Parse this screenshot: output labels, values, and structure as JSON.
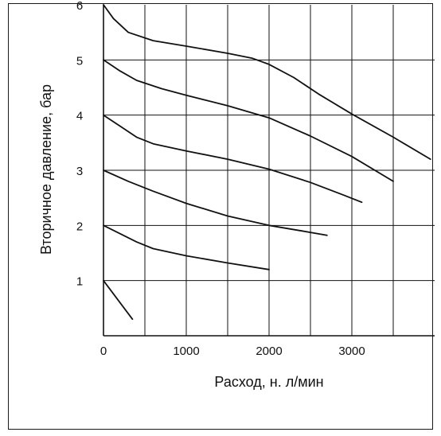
{
  "chart_data": {
    "type": "line",
    "title": "",
    "xlabel": "Расход, н. л/мин",
    "ylabel": "Вторичное давление, бар",
    "xlim": [
      0,
      4000
    ],
    "ylim": [
      0,
      6
    ],
    "x_ticks": [
      0,
      1000,
      2000,
      3000
    ],
    "x_tick_labels": [
      "0",
      "1000",
      "2000",
      "3000"
    ],
    "y_ticks": [
      1,
      2,
      3,
      4,
      5,
      6
    ],
    "y_tick_labels": [
      "1",
      "2",
      "3",
      "4",
      "5",
      "6"
    ],
    "grid": true,
    "grid_x_step": 500,
    "grid_y_step": 1,
    "line_color": "#111111",
    "series": [
      {
        "x": [
          0,
          120,
          300,
          600,
          1000,
          1500,
          1800,
          2000,
          2300,
          2600,
          3000,
          3500,
          3950
        ],
        "y": [
          6.0,
          5.75,
          5.5,
          5.35,
          5.25,
          5.12,
          5.03,
          4.92,
          4.68,
          4.38,
          4.02,
          3.6,
          3.2
        ]
      },
      {
        "x": [
          0,
          200,
          400,
          700,
          1000,
          1500,
          2000,
          2500,
          3000,
          3500
        ],
        "y": [
          5.0,
          4.8,
          4.63,
          4.48,
          4.36,
          4.17,
          3.95,
          3.62,
          3.25,
          2.8
        ]
      },
      {
        "x": [
          0,
          200,
          400,
          600,
          1000,
          1500,
          2000,
          2500,
          2900,
          3120
        ],
        "y": [
          4.0,
          3.8,
          3.6,
          3.48,
          3.35,
          3.2,
          3.02,
          2.78,
          2.55,
          2.42
        ]
      },
      {
        "x": [
          0,
          300,
          600,
          1000,
          1500,
          2000,
          2400,
          2700
        ],
        "y": [
          3.0,
          2.8,
          2.62,
          2.4,
          2.17,
          2.0,
          1.9,
          1.82
        ]
      },
      {
        "x": [
          0,
          200,
          400,
          600,
          1000,
          1500,
          2000
        ],
        "y": [
          2.0,
          1.85,
          1.7,
          1.58,
          1.45,
          1.32,
          1.2
        ]
      },
      {
        "x": [
          0,
          350
        ],
        "y": [
          1.0,
          0.3
        ]
      }
    ]
  }
}
